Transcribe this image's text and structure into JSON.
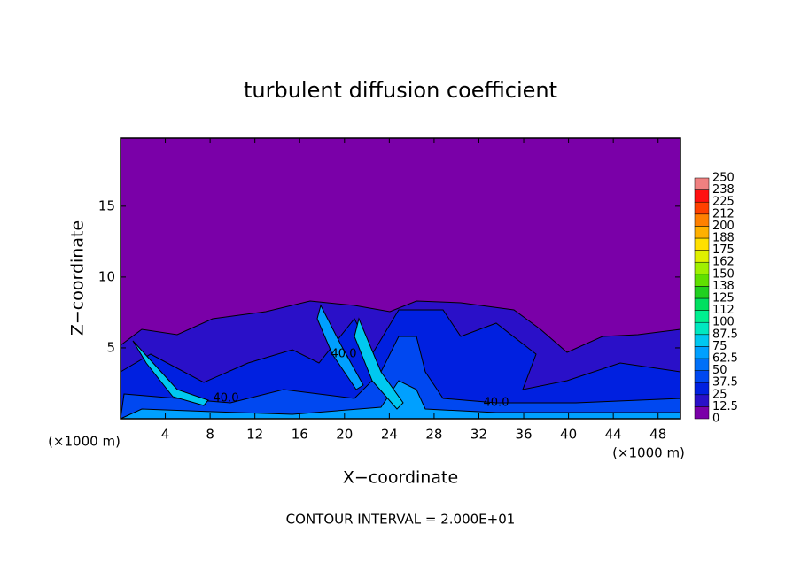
{
  "chart_data": {
    "type": "contour",
    "title": "turbulent diffusion coefficient",
    "xlabel": "X−coordinate",
    "ylabel": "Z−coordinate",
    "x_unit_label": "(×1000 m)",
    "y_unit_label": "(×1000 m)",
    "xlim": [
      0,
      50
    ],
    "ylim": [
      0,
      19.8
    ],
    "xticks": [
      4,
      8,
      12,
      16,
      20,
      24,
      28,
      32,
      36,
      40,
      44,
      48
    ],
    "yticks": [
      5,
      10,
      15
    ],
    "contour_labels": {
      "values": [
        40,
        40,
        40
      ],
      "value_labels": [
        "40.0",
        "40.0",
        "40.0"
      ]
    },
    "footnote": "CONTOUR INTERVAL = 2.000E+01",
    "colorbar": {
      "levels": [
        0,
        12.5,
        25,
        37.5,
        50,
        62.5,
        75,
        87.5,
        100,
        {
          "value": 112.5,
          "label": "112"
        },
        125,
        {
          "value": 137.5,
          "label": "138"
        },
        150,
        {
          "value": 162.5,
          "label": "162"
        },
        175,
        {
          "value": 187.5,
          "label": "188"
        },
        200,
        {
          "value": 212.5,
          "label": "212"
        },
        225,
        {
          "value": 237.5,
          "label": "238"
        },
        250
      ],
      "colors": [
        "#7a00a8",
        "#2a10c8",
        "#0020e0",
        "#0048f0",
        "#0070f8",
        "#00a0ff",
        "#00c8f0",
        "#00e8c0",
        "#00f090",
        "#00e060",
        "#20d020",
        "#60e000",
        "#a0f000",
        "#e0f000",
        "#ffe000",
        "#ffb000",
        "#ff8000",
        "#ff4000",
        "#ff1010",
        "#f08080"
      ]
    }
  }
}
